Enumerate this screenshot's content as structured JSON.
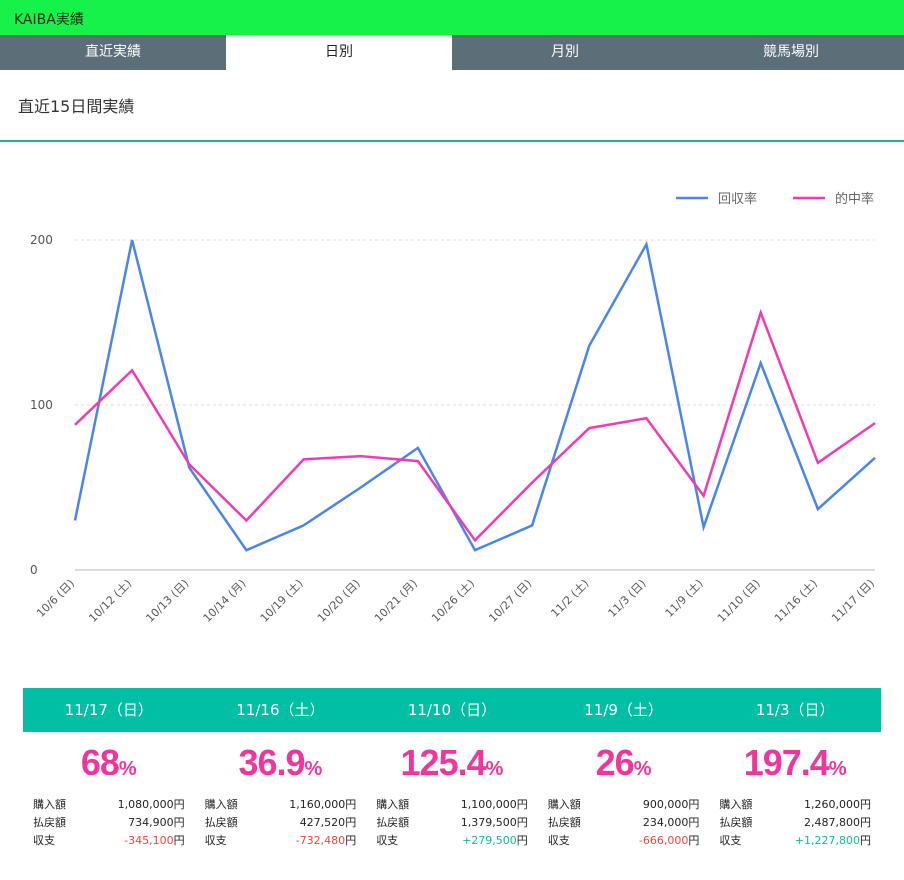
{
  "app": {
    "title": "KAIBA実績"
  },
  "tabs": [
    {
      "label": "直近実績",
      "active": false
    },
    {
      "label": "日別",
      "active": true
    },
    {
      "label": "月別",
      "active": false
    },
    {
      "label": "競馬場別",
      "active": false
    }
  ],
  "section": {
    "title": "直近15日間実績"
  },
  "colors": {
    "recovery": "#4a86e8",
    "hit": "#f03cb4",
    "accent": "#00bfa5",
    "topbar": "#16f24a",
    "negative": "#f2453d",
    "positive": "#14b89a"
  },
  "chart_data": {
    "type": "line",
    "categories": [
      "10/6 (日)",
      "10/12 (土)",
      "10/13 (日)",
      "10/14 (月)",
      "10/19 (土)",
      "10/20 (日)",
      "10/21 (月)",
      "10/26 (土)",
      "10/27 (日)",
      "11/2 (土)",
      "11/3 (日)",
      "11/9 (土)",
      "11/10 (日)",
      "11/16 (土)",
      "11/17 (日)"
    ],
    "series": [
      {
        "name": "回収率",
        "color": "#4a86e8",
        "values": [
          30,
          200,
          62,
          12,
          27,
          50,
          74,
          12,
          27,
          136,
          197.4,
          26,
          125.4,
          36.9,
          68
        ]
      },
      {
        "name": "的中率",
        "color": "#f03cb4",
        "values": [
          88,
          121,
          64,
          30,
          67,
          69,
          66,
          18,
          53,
          86,
          92,
          45,
          156,
          65,
          89
        ]
      }
    ],
    "yticks": [
      0,
      100,
      200
    ],
    "ylim": [
      0,
      200
    ],
    "grid": true,
    "legend": "top-right"
  },
  "labels": {
    "purchase": "購入額",
    "payout": "払戻額",
    "balance": "収支",
    "yen": "円",
    "percent": "%"
  },
  "cards": [
    {
      "date": "11/17（日）",
      "rate": "68",
      "purchase": "1,080,000",
      "payout": "734,900",
      "balance": "-345,100",
      "balance_sign": "neg"
    },
    {
      "date": "11/16（土）",
      "rate": "36.9",
      "purchase": "1,160,000",
      "payout": "427,520",
      "balance": "-732,480",
      "balance_sign": "neg"
    },
    {
      "date": "11/10（日）",
      "rate": "125.4",
      "purchase": "1,100,000",
      "payout": "1,379,500",
      "balance": "+279,500",
      "balance_sign": "pos"
    },
    {
      "date": "11/9（土）",
      "rate": "26",
      "purchase": "900,000",
      "payout": "234,000",
      "balance": "-666,000",
      "balance_sign": "neg"
    },
    {
      "date": "11/3（日）",
      "rate": "197.4",
      "purchase": "1,260,000",
      "payout": "2,487,800",
      "balance": "+1,227,800",
      "balance_sign": "pos"
    }
  ]
}
